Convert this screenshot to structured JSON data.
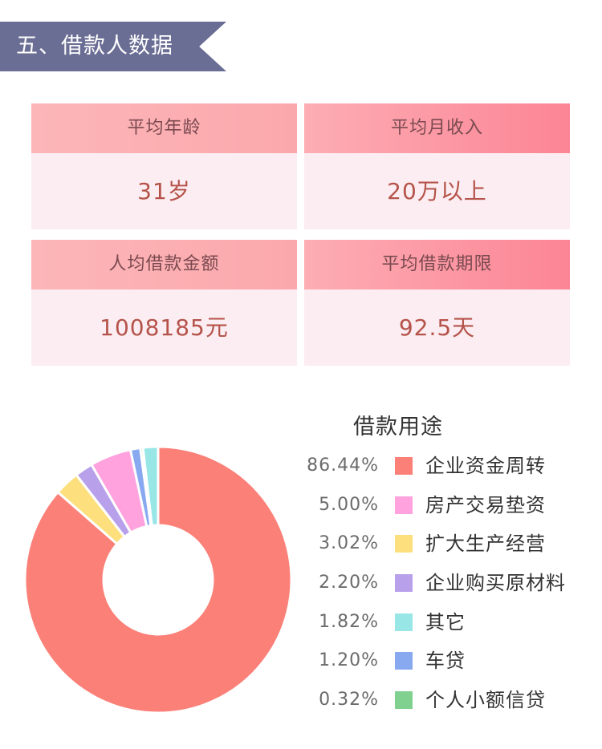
{
  "section": {
    "title": "五、借款人数据",
    "banner_color": "#6b6e94"
  },
  "cards": [
    {
      "label": "平均年龄",
      "value": "31岁"
    },
    {
      "label": "平均月收入",
      "value": "20万以上"
    },
    {
      "label": "人均借款金额",
      "value": "1008185元"
    },
    {
      "label": "平均借款期限",
      "value": "92.5天"
    }
  ],
  "chart_data": {
    "type": "pie",
    "donut": true,
    "title": "借款用途",
    "slices": [
      {
        "label": "企业资金周转",
        "value": 86.44,
        "pct_label": "86.44%",
        "color": "#fb8078"
      },
      {
        "label": "房产交易垫资",
        "value": 5.0,
        "pct_label": "5.00%",
        "color": "#ffa2de"
      },
      {
        "label": "扩大生产经营",
        "value": 3.02,
        "pct_label": "3.02%",
        "color": "#fde07d"
      },
      {
        "label": "企业购买原材料",
        "value": 2.2,
        "pct_label": "2.20%",
        "color": "#b8a0ea"
      },
      {
        "label": "其它",
        "value": 1.82,
        "pct_label": "1.82%",
        "color": "#98e6e6"
      },
      {
        "label": "车贷",
        "value": 1.2,
        "pct_label": "1.20%",
        "color": "#88a8f0"
      },
      {
        "label": "个人小额信贷",
        "value": 0.32,
        "pct_label": "0.32%",
        "color": "#80d090"
      }
    ],
    "pie_order": [
      "企业资金周转",
      "扩大生产经营",
      "企业购买原材料",
      "房产交易垫资",
      "车贷",
      "个人小额信贷",
      "其它"
    ]
  }
}
